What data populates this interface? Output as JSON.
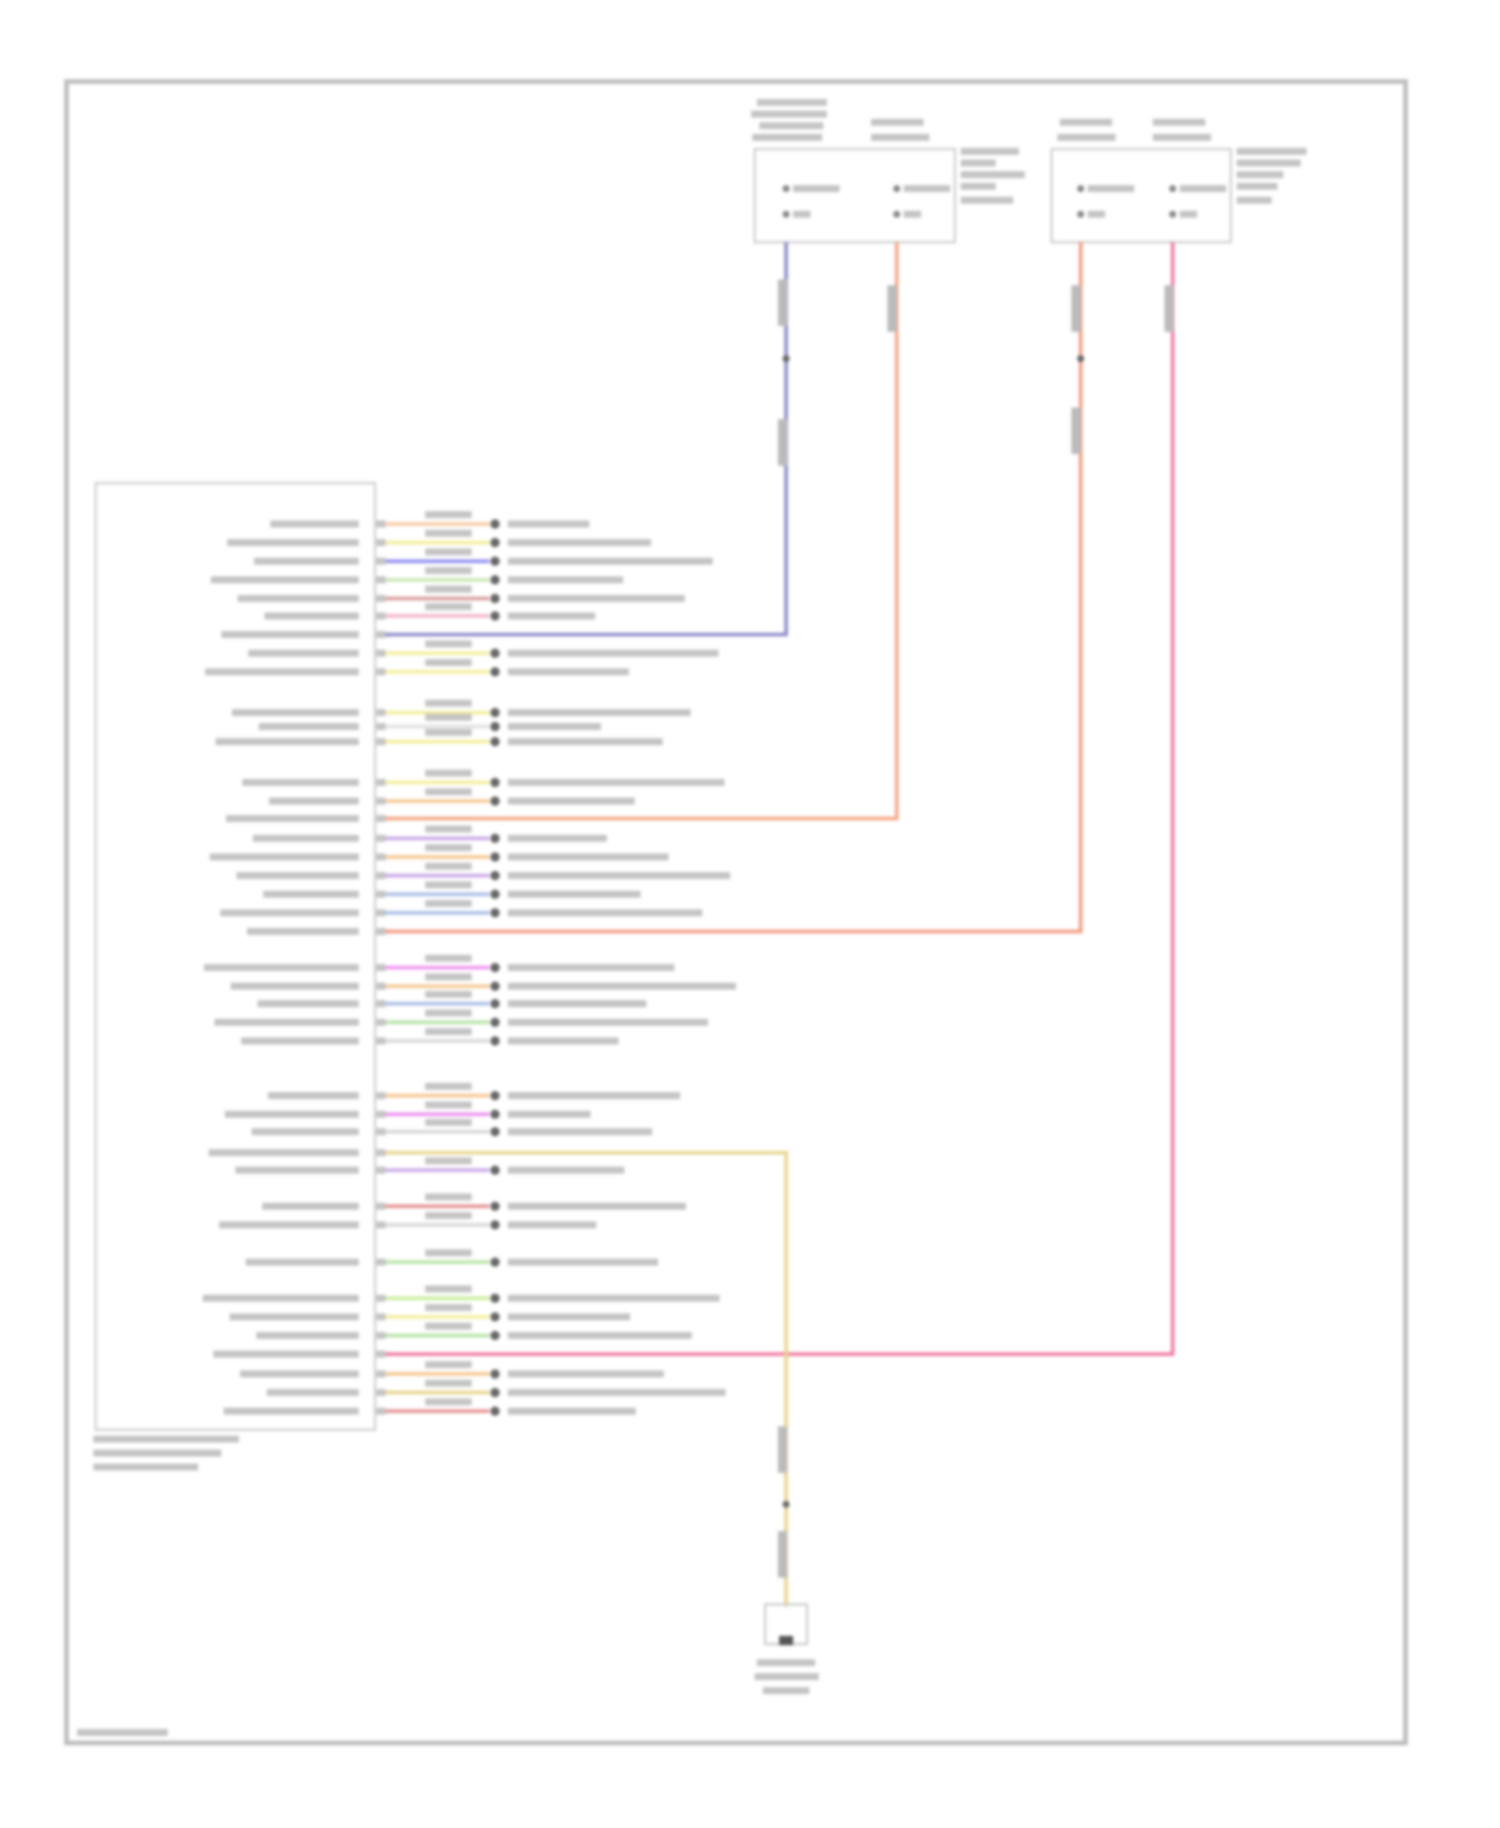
{
  "diagram": {
    "frame_color": "#bdbdbd",
    "text_color": "#9a9a9a",
    "module_pin_rows": [
      {
        "wire": "#f7c9a0"
      },
      {
        "wire": "#f3ee9a"
      },
      {
        "wire": "#8f8cf0"
      },
      {
        "wire": "#c8e6b0"
      },
      {
        "wire": "#d99a9a"
      },
      {
        "wire": "#f2b5c8"
      },
      {
        "wire": "#8a88c8",
        "route": "blue"
      },
      {
        "wire": "#f3ee9a"
      },
      {
        "wire": "#f3ee9a"
      },
      {
        "wire": "#f3ee9a"
      },
      {
        "wire": "#e0e0e0"
      },
      {
        "wire": "#f3ee9a"
      },
      {
        "wire": "#f3ee9a"
      },
      {
        "wire": "#f5c58e"
      },
      {
        "wire": "#f4a582",
        "route": "orange"
      },
      {
        "wire": "#c9a6e6"
      },
      {
        "wire": "#f5c58e"
      },
      {
        "wire": "#c9a6e6"
      },
      {
        "wire": "#a9bde6"
      },
      {
        "wire": "#a9bde6"
      },
      {
        "wire": "#f29a80",
        "route": "red"
      },
      {
        "wire": "#ee8ef0"
      },
      {
        "wire": "#f5c58e"
      },
      {
        "wire": "#a9bde6"
      },
      {
        "wire": "#b6e3a8"
      },
      {
        "wire": "#d6d6d6"
      },
      {
        "wire": "#f5c58e"
      },
      {
        "wire": "#ee8ef0"
      },
      {
        "wire": "#d6d6d6"
      },
      {
        "wire": "#e8d48a",
        "route": "yellow"
      },
      {
        "wire": "#c9a6e6"
      },
      {
        "wire": "#e58f8f"
      },
      {
        "wire": "#d6d6d6"
      },
      {
        "wire": "#b6e3a8"
      },
      {
        "wire": "#c8ee9a"
      },
      {
        "wire": "#f3ee9a"
      },
      {
        "wire": "#b6e3a8"
      },
      {
        "wire": "#f07aa0",
        "route": "pink"
      },
      {
        "wire": "#f5c58e"
      },
      {
        "wire": "#e8d48a"
      },
      {
        "wire": "#e58f8f"
      }
    ]
  }
}
